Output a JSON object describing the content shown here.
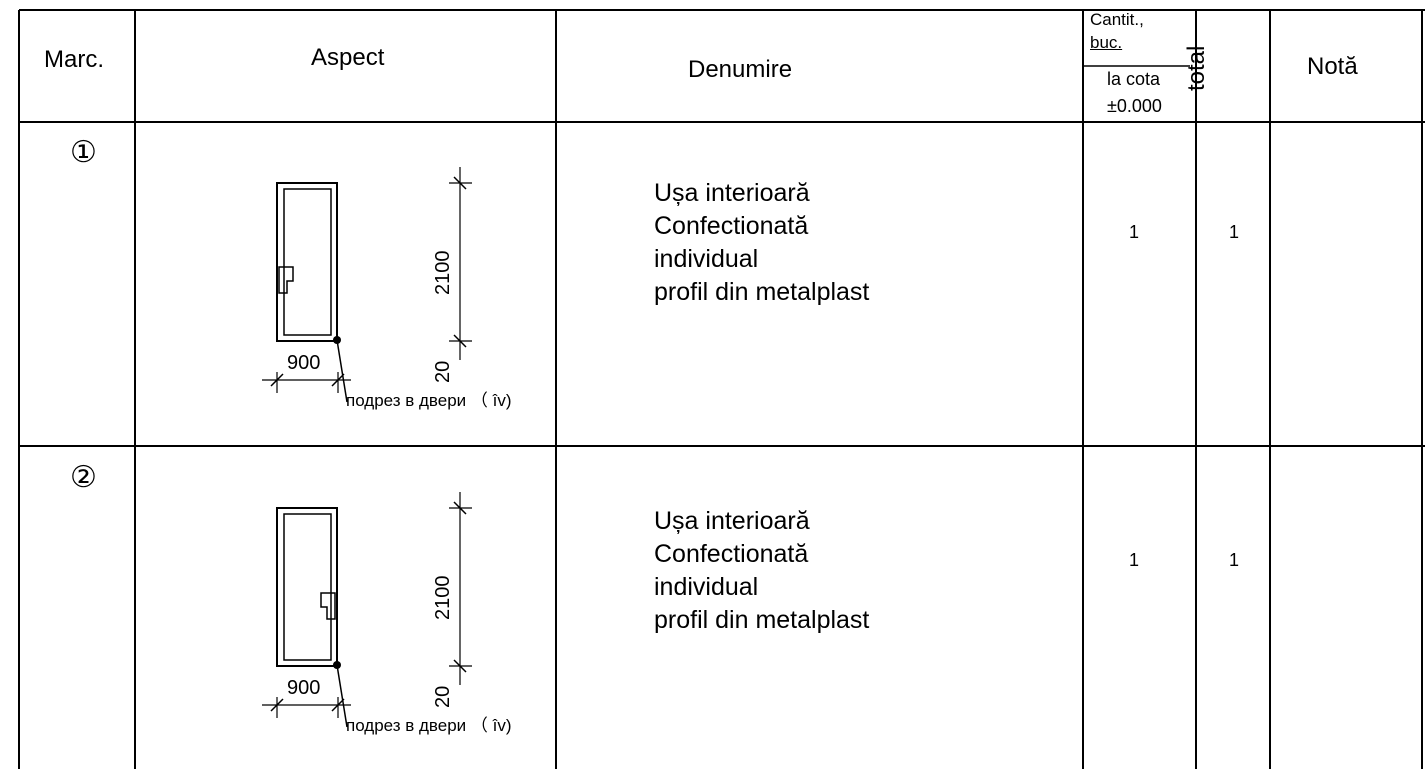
{
  "table": {
    "headers": {
      "marc": "Marc.",
      "aspect": "Aspect",
      "denumire": "Denumire",
      "cantit_line1": "Cantit.,",
      "cantit_line2": "buc.",
      "cota_line1": "la cota",
      "cota_line2": "±0.000",
      "total": "total",
      "nota": "Notă"
    },
    "rows": [
      {
        "mark": "①",
        "denumire": [
          "Ușa interioară",
          "Confectionată",
          "individual",
          "profil din metalplast"
        ],
        "qty_cota": "1",
        "total": "1",
        "nota": "",
        "drawing": {
          "width": "900",
          "height": "2100",
          "gap": "20",
          "note": "подрез в двери （ îv)",
          "handle_side": "left"
        }
      },
      {
        "mark": "②",
        "denumire": [
          "Ușa interioară",
          "Confectionată",
          "individual",
          "profil din metalplast"
        ],
        "qty_cota": "1",
        "total": "1",
        "nota": "",
        "drawing": {
          "width": "900",
          "height": "2100",
          "gap": "20",
          "note": "подрез в двери （ îv)",
          "handle_side": "right"
        }
      }
    ]
  }
}
